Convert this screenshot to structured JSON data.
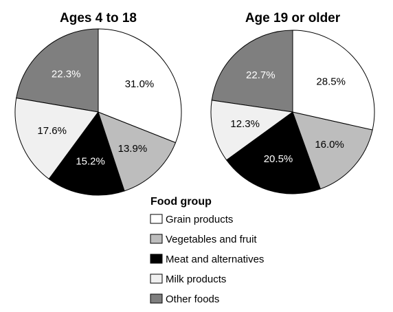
{
  "chart_data": [
    {
      "type": "pie",
      "title": "Ages 4 to 18",
      "categories": [
        "Grain products",
        "Vegetables and fruit",
        "Meat and alternatives",
        "Milk products",
        "Other foods"
      ],
      "values": [
        31.0,
        13.9,
        15.2,
        17.6,
        22.3
      ],
      "labels": [
        "31.0%",
        "13.9%",
        "15.2%",
        "17.6%",
        "22.3%"
      ]
    },
    {
      "type": "pie",
      "title": "Age 19 or older",
      "categories": [
        "Grain products",
        "Vegetables and fruit",
        "Meat and alternatives",
        "Milk products",
        "Other foods"
      ],
      "values": [
        28.5,
        16.0,
        20.5,
        12.3,
        22.7
      ],
      "labels": [
        "28.5%",
        "16.0%",
        "20.5%",
        "12.3%",
        "22.7%"
      ]
    }
  ],
  "legend": {
    "title": "Food group",
    "placement": "bottom-right",
    "items": [
      {
        "label": "Grain products",
        "color": "#ffffff"
      },
      {
        "label": "Vegetables and fruit",
        "color": "#bdbdbd"
      },
      {
        "label": "Meat and alternatives",
        "color": "#000000"
      },
      {
        "label": "Milk products",
        "color": "#f0f0f0"
      },
      {
        "label": "Other foods",
        "color": "#7f7f7f"
      }
    ]
  }
}
